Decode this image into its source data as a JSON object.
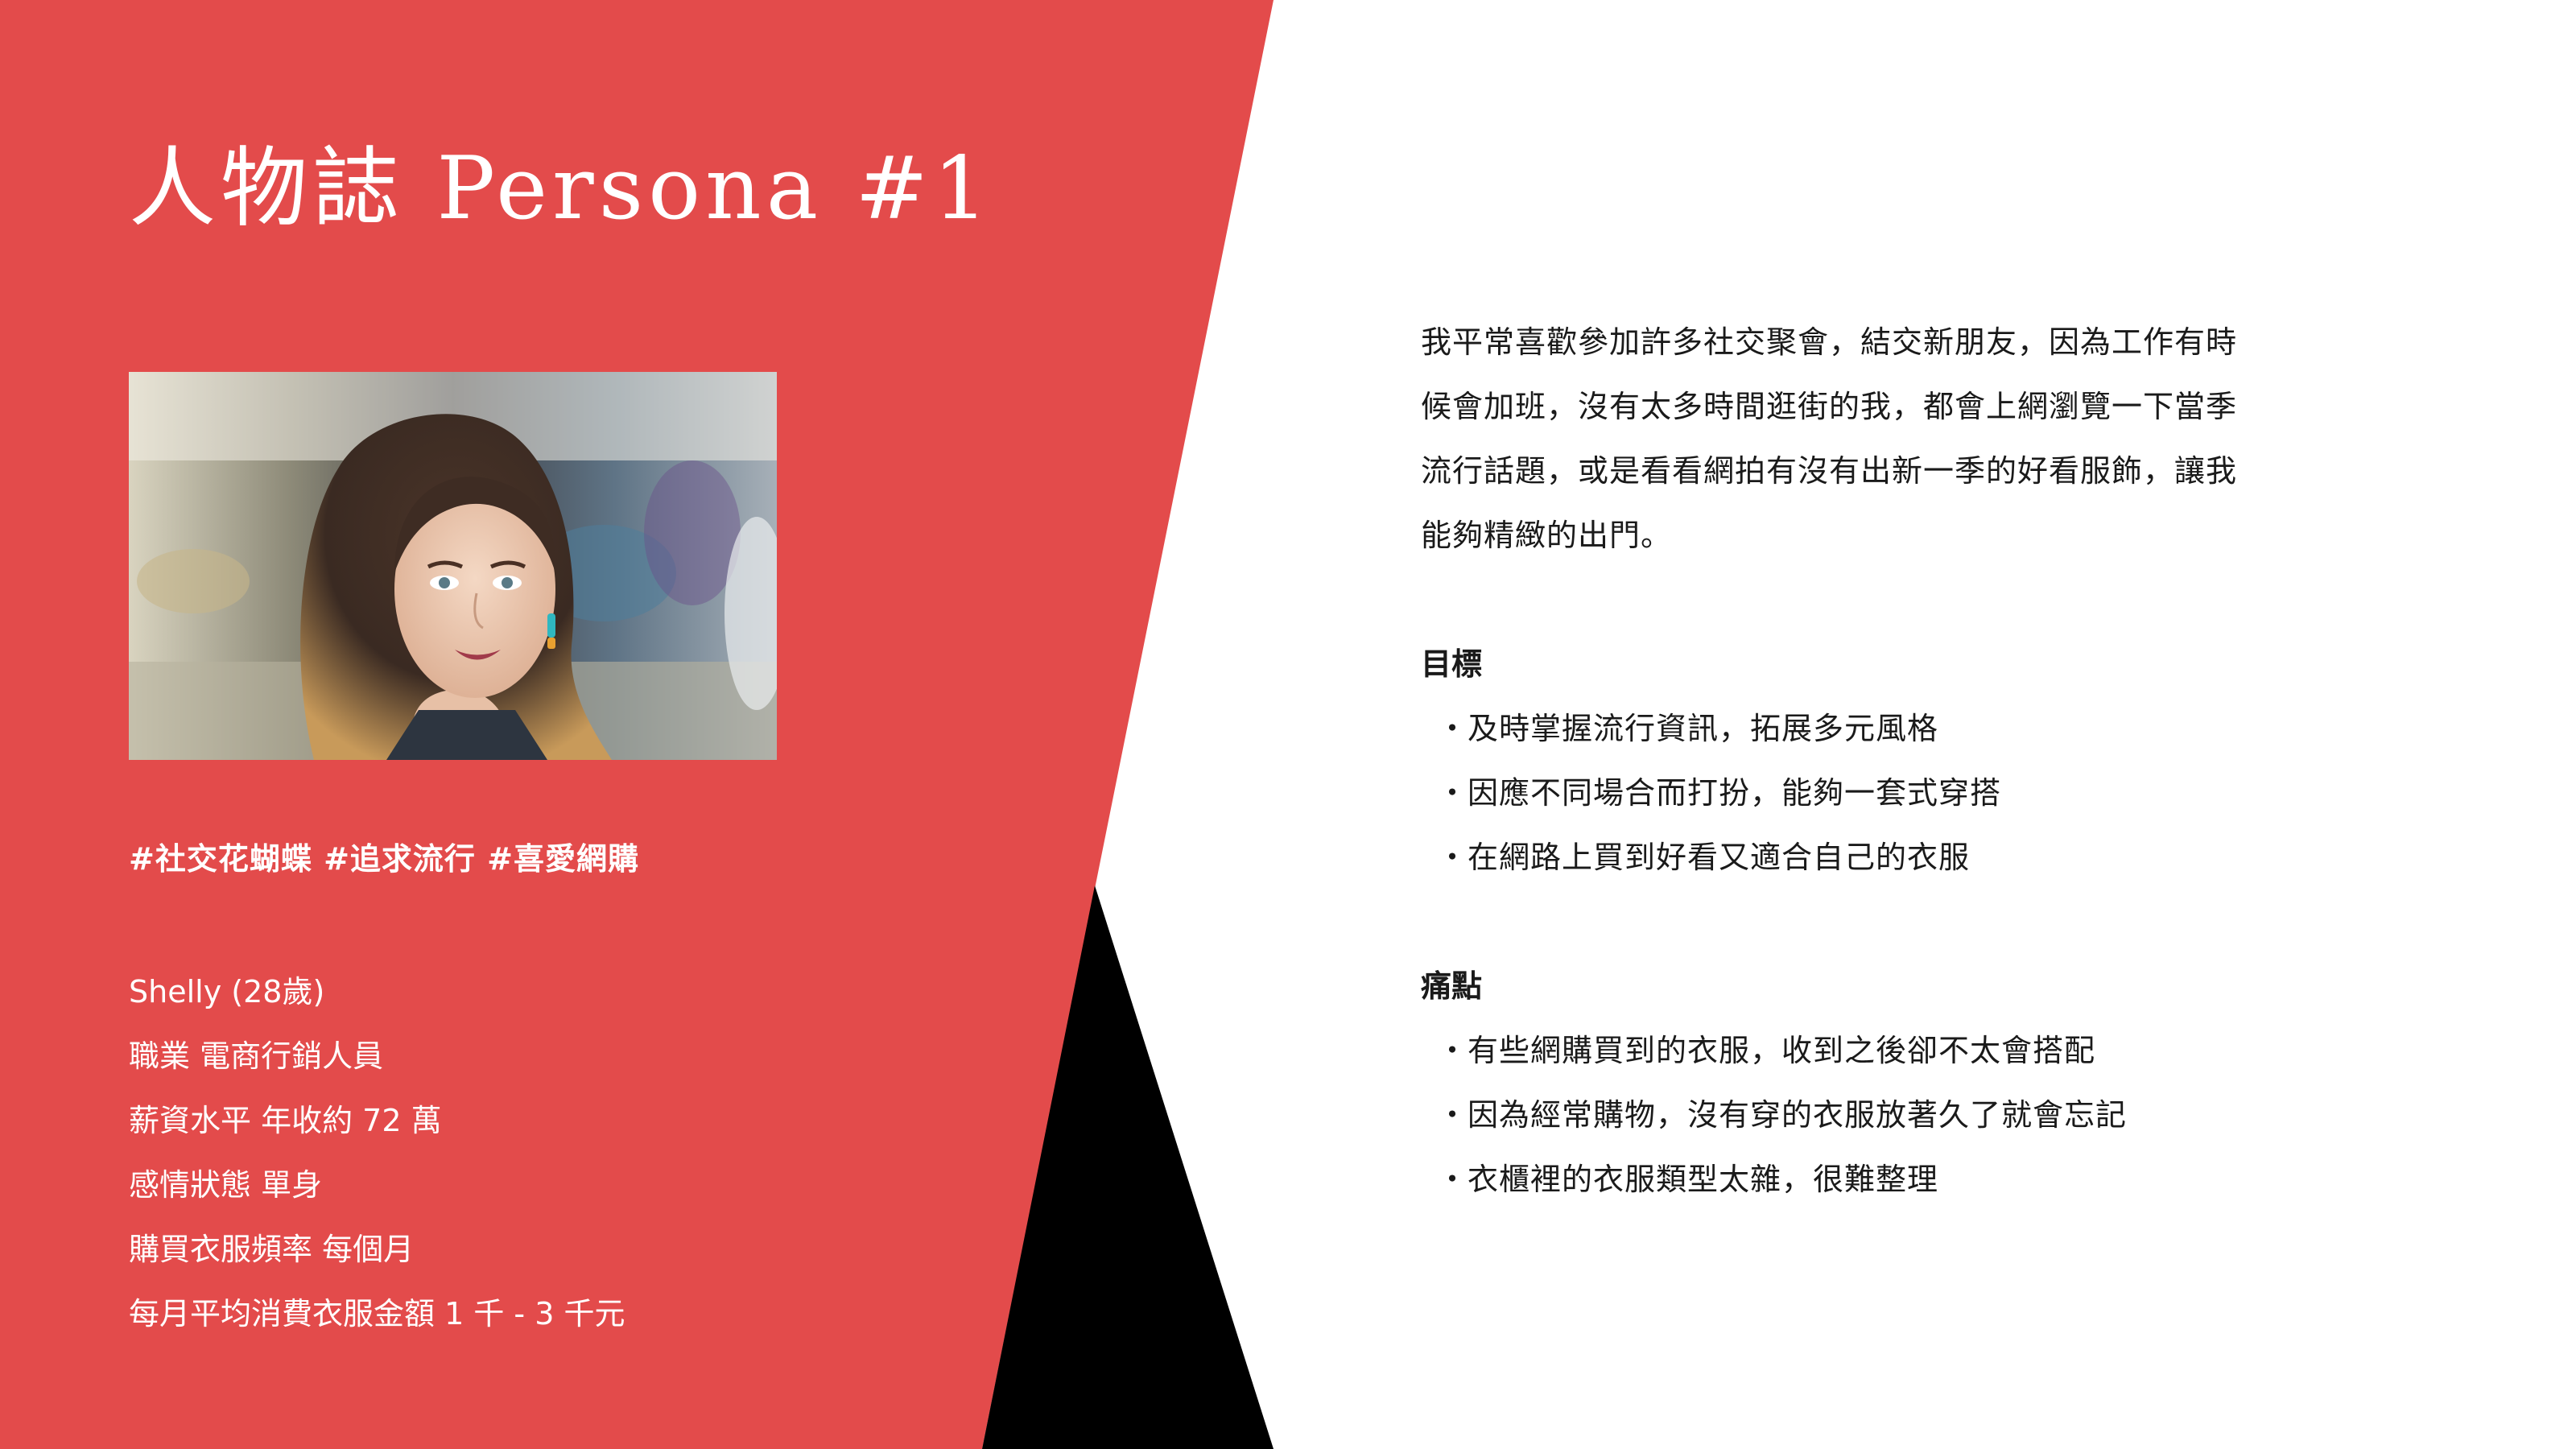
{
  "title": "人物誌 Persona #1",
  "photo": {
    "subject": "portrait-of-woman-with-long-wavy-hair-in-graffiti-underpass"
  },
  "tags": "#社交花蝴蝶 #追求流行 #喜愛網購",
  "profile": [
    "Shelly (28歲)",
    "職業 電商行銷人員",
    "薪資水平 年收約 72 萬",
    "感情狀態 單身",
    "購買衣服頻率 每個月",
    "每月平均消費衣服金額 1 千 - 3 千元"
  ],
  "intro_lines": [
    "我平常喜歡參加許多社交聚會，結交新朋友，因為工作有時",
    "候會加班，沒有太多時間逛街的我，都會上網瀏覽一下當季",
    "流行話題，或是看看網拍有沒有出新一季的好看服飾，讓我",
    "能夠精緻的出門。"
  ],
  "goals": {
    "heading": "目標",
    "items": [
      "及時掌握流行資訊，拓展多元風格",
      "因應不同場合而打扮，能夠一套式穿搭",
      "在網路上買到好看又適合自己的衣服"
    ]
  },
  "pains": {
    "heading": "痛點",
    "items": [
      "有些網購買到的衣服，收到之後卻不太會搭配",
      "因為經常購物，沒有穿的衣服放著久了就會忘記",
      "衣櫃裡的衣服類型太雜，很難整理"
    ]
  },
  "bullet_symbol": "・",
  "colors": {
    "accent_red": "#E34B4B",
    "black": "#000000",
    "text_dark": "#1a1a1a",
    "white": "#ffffff"
  }
}
